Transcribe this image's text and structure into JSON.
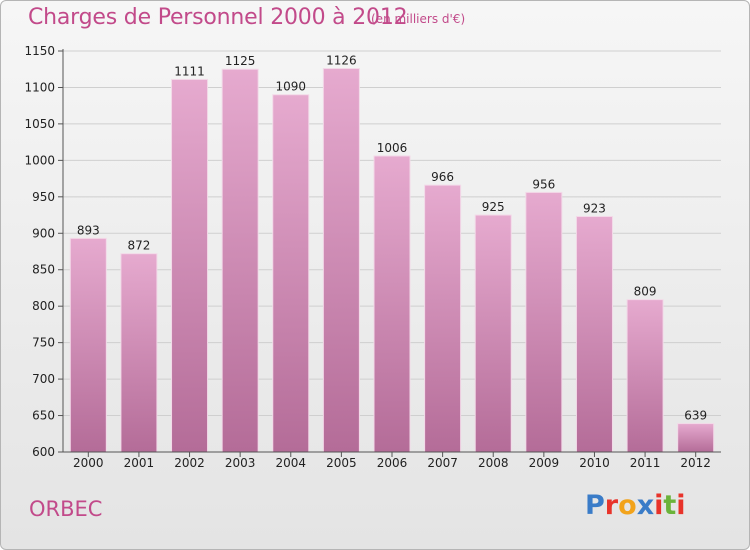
{
  "header": {
    "title": "Charges de Personnel 2000 à 2012",
    "subtitle": "(en milliers d'€)"
  },
  "footer": {
    "commune": "ORBEC",
    "logo_text": "Proxiti",
    "logo_colors": [
      "#3a7cc8",
      "#e8332a",
      "#f2a31b",
      "#3a7cc8",
      "#e8332a",
      "#6bb33a",
      "#e8332a"
    ]
  },
  "chart_data": {
    "type": "bar",
    "title": "Charges de Personnel 2000 à 2012",
    "subtitle": "(en milliers d'€)",
    "categories": [
      "2000",
      "2001",
      "2002",
      "2003",
      "2004",
      "2005",
      "2006",
      "2007",
      "2008",
      "2009",
      "2010",
      "2011",
      "2012"
    ],
    "values": [
      893,
      872,
      1111,
      1125,
      1090,
      1126,
      1006,
      966,
      925,
      956,
      923,
      809,
      639
    ],
    "ylim": [
      600,
      1150
    ],
    "yticks": [
      600,
      650,
      700,
      750,
      800,
      850,
      900,
      950,
      1000,
      1050,
      1100,
      1150
    ],
    "grid": true,
    "colors": {
      "bar_top": "#e3a6cb",
      "bar_bottom": "#b76f9b",
      "text": "#c24a8a"
    }
  }
}
